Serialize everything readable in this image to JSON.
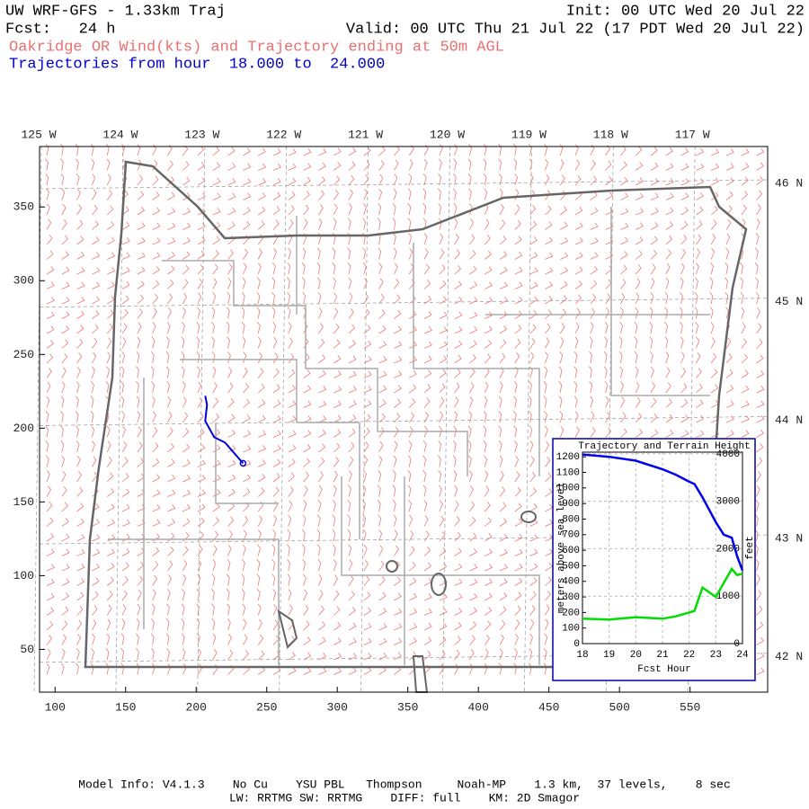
{
  "header": {
    "title": "UW WRF-GFS - 1.33km Traj",
    "init": "Init: 00 UTC Wed 20 Jul 22",
    "fcst": "Fcst:   24 h",
    "valid": "Valid: 00 UTC Thu 21 Jul 22 (17 PDT Wed 20 Jul 22)",
    "field": "Oakridge OR Wind(kts) and Trajectory ending at 50m AGL",
    "trajectories": "Trajectories from hour  18.000 to  24.000"
  },
  "map": {
    "xlim": [
      89,
      605
    ],
    "ylim": [
      21,
      391
    ],
    "xticks": [
      100,
      150,
      200,
      250,
      300,
      350,
      400,
      450,
      500,
      550
    ],
    "yticks": [
      50,
      100,
      150,
      200,
      250,
      300,
      350
    ],
    "lon_labels": [
      "125 W",
      "124 W",
      "123 W",
      "122 W",
      "121 W",
      "120 W",
      "119 W",
      "118 W",
      "117 W"
    ],
    "lat_labels": [
      "46 N",
      "45 N",
      "44 N",
      "43 N",
      "42 N"
    ],
    "trajectory": {
      "color": "#0000dd",
      "x": [
        206.4,
        207.7,
        206.4,
        212.8,
        220.5,
        233.2
      ],
      "y": [
        222,
        215.9,
        204.9,
        193.9,
        190.2,
        176.2
      ]
    }
  },
  "chart_data": {
    "type": "line",
    "title": "Trajectory and Terrain Height",
    "xlabel": "Fcst Hour",
    "ylabel": "meters above sea level",
    "y2label": "feet",
    "x": [
      18,
      19,
      20,
      21,
      21.5,
      22,
      22.2,
      22.5,
      23,
      23.3,
      23.6,
      23.8,
      24
    ],
    "xlim": [
      18,
      24
    ],
    "xticks": [
      18,
      19,
      20,
      21,
      22,
      23,
      24
    ],
    "ylim": [
      0,
      1230
    ],
    "yticks": [
      0,
      100,
      200,
      300,
      400,
      500,
      600,
      700,
      800,
      900,
      1000,
      1100,
      1200
    ],
    "y2lim": [
      0,
      4035
    ],
    "y2ticks": [
      0,
      1000,
      2000,
      3000,
      4000
    ],
    "grid": true,
    "series": [
      {
        "color": "#0000ee",
        "values": [
          1215,
          1200,
          1175,
          1120,
          1085,
          1040,
          1025,
          940,
          780,
          700,
          680,
          560,
          470
        ]
      },
      {
        "color": "#00dd00",
        "values": [
          160,
          155,
          170,
          160,
          175,
          200,
          210,
          360,
          300,
          390,
          480,
          440,
          450
        ]
      }
    ]
  },
  "footer": {
    "line1": "Model Info: V4.1.3    No Cu    YSU PBL   Thompson     Noah-MP    1.3 km,  37 levels,    8 sec",
    "line2": "LW: RRTMG SW: RRTMG    DIFF: full    KM: 2D Smagor"
  }
}
